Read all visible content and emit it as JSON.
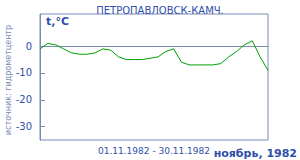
{
  "chart_data": {
    "type": "line",
    "title": "ПЕТРОПАВЛОВСК-КАМЧ.",
    "y_label": "t,°C",
    "x_label": "01.11.1982 - 30.11.1982",
    "annotations": [
      "источник: гидрометцентр",
      "ноябрь, 1982"
    ],
    "x": [
      1,
      2,
      3,
      4,
      5,
      6,
      7,
      8,
      9,
      10,
      11,
      12,
      13,
      14,
      15,
      16,
      17,
      18,
      19,
      20,
      21,
      22,
      23,
      24,
      25,
      26,
      27,
      28,
      29,
      30
    ],
    "values": [
      -1,
      1,
      0.5,
      -1,
      -2.5,
      -3,
      -3,
      -2.5,
      -1,
      -1.5,
      -4,
      -5,
      -5,
      -5,
      -4.5,
      -4,
      -2,
      -1,
      -6,
      -7,
      -7,
      -7,
      -7,
      -6.5,
      -4,
      -2,
      0.5,
      2,
      -4,
      -9
    ],
    "color": "#00a000",
    "xlim": [
      1,
      30
    ],
    "ylim": [
      -35,
      12
    ],
    "yticks": [
      -30,
      -20,
      -10,
      0
    ],
    "grid": false,
    "tick_labels": "y"
  }
}
